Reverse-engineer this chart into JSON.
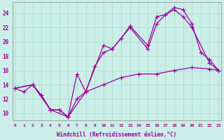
{
  "xlabel": "Windchill (Refroidissement éolien,°C)",
  "ylabel": "",
  "bg_color": "#cceee8",
  "line_color": "#990099",
  "grid_color": "#aaddcc",
  "xmin": 0,
  "xmax": 23,
  "ymin": 9,
  "ymax": 25,
  "yticks": [
    10,
    12,
    14,
    16,
    18,
    20,
    22,
    24
  ],
  "xticks": [
    0,
    1,
    2,
    3,
    4,
    5,
    6,
    7,
    8,
    9,
    10,
    11,
    12,
    13,
    14,
    15,
    16,
    17,
    18,
    19,
    20,
    21,
    22,
    23
  ],
  "series1_x": [
    0,
    1,
    2,
    3,
    4,
    5,
    6,
    7,
    8,
    10,
    11,
    12,
    13,
    15,
    16,
    17,
    18,
    19,
    20,
    21,
    22,
    23
  ],
  "series1_y": [
    13.5,
    13.0,
    14.0,
    12.5,
    10.5,
    10.5,
    9.5,
    12.0,
    13.0,
    19.5,
    19.0,
    20.5,
    22.2,
    19.5,
    23.5,
    23.8,
    24.8,
    24.5,
    22.5,
    18.5,
    17.5,
    16.0
  ],
  "series2_x": [
    0,
    2,
    3,
    4,
    5,
    6,
    7,
    8,
    9,
    10,
    11,
    12,
    13,
    15,
    16,
    17,
    18,
    19,
    20,
    22,
    23
  ],
  "series2_y": [
    13.5,
    14.0,
    12.5,
    10.5,
    10.5,
    9.5,
    15.5,
    13.0,
    16.5,
    18.5,
    19.0,
    20.5,
    22.0,
    19.0,
    22.5,
    23.8,
    24.5,
    23.5,
    22.0,
    17.0,
    16.0
  ],
  "series3_x": [
    0,
    2,
    4,
    6,
    8,
    10,
    12,
    14,
    16,
    18,
    20,
    22,
    23
  ],
  "series3_y": [
    13.5,
    14.0,
    10.5,
    9.5,
    13.0,
    14.0,
    15.0,
    15.5,
    15.5,
    16.0,
    16.4,
    16.2,
    16.0
  ]
}
